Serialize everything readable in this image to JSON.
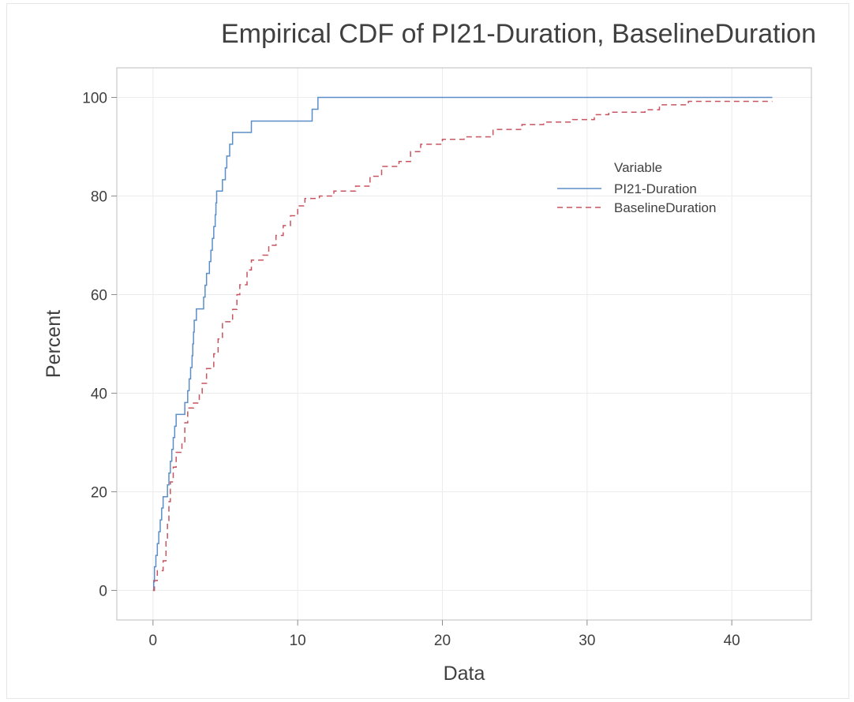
{
  "chart_data": {
    "type": "line",
    "title": "Empirical CDF of PI21-Duration, BaselineDuration",
    "xlabel": "Data",
    "ylabel": "Percent",
    "xlim": [
      -2.5,
      45.5
    ],
    "ylim": [
      -6,
      106
    ],
    "xticks": [
      0,
      10,
      20,
      30,
      40
    ],
    "yticks": [
      0,
      20,
      40,
      60,
      80,
      100
    ],
    "xtick_labels": [
      "0",
      "10",
      "20",
      "30",
      "40"
    ],
    "ytick_labels": [
      "0",
      "20",
      "40",
      "60",
      "80",
      "100"
    ],
    "grid": true,
    "legend": {
      "title": "Variable",
      "placement": "top-right",
      "entries": [
        "PI21-Duration",
        "BaselineDuration"
      ]
    },
    "series": [
      {
        "name": "PI21-Duration",
        "color": "#5b8ec8",
        "dash": "solid",
        "step": true,
        "points": [
          [
            0,
            0
          ],
          [
            0.05,
            2
          ],
          [
            0.1,
            4.8
          ],
          [
            0.2,
            7.1
          ],
          [
            0.3,
            9.5
          ],
          [
            0.4,
            11.9
          ],
          [
            0.5,
            14.3
          ],
          [
            0.6,
            16.7
          ],
          [
            0.7,
            19
          ],
          [
            1.0,
            21.4
          ],
          [
            1.1,
            23.8
          ],
          [
            1.2,
            26.2
          ],
          [
            1.3,
            28.6
          ],
          [
            1.4,
            31
          ],
          [
            1.5,
            33.3
          ],
          [
            1.6,
            35.7
          ],
          [
            2.2,
            38.1
          ],
          [
            2.4,
            40.5
          ],
          [
            2.5,
            42.9
          ],
          [
            2.6,
            45.2
          ],
          [
            2.7,
            47.6
          ],
          [
            2.75,
            50
          ],
          [
            2.8,
            52.4
          ],
          [
            2.85,
            54.8
          ],
          [
            3.0,
            57.1
          ],
          [
            3.5,
            59.5
          ],
          [
            3.6,
            61.9
          ],
          [
            3.7,
            64.3
          ],
          [
            3.9,
            66.7
          ],
          [
            4.0,
            69
          ],
          [
            4.1,
            71.4
          ],
          [
            4.2,
            73.8
          ],
          [
            4.3,
            76.2
          ],
          [
            4.35,
            78.6
          ],
          [
            4.4,
            81
          ],
          [
            4.8,
            83.3
          ],
          [
            5.0,
            85.7
          ],
          [
            5.1,
            88.1
          ],
          [
            5.3,
            90.5
          ],
          [
            5.5,
            92.9
          ],
          [
            6.8,
            95.2
          ],
          [
            11.0,
            97.6
          ],
          [
            11.4,
            100
          ],
          [
            42.8,
            100
          ]
        ]
      },
      {
        "name": "BaselineDuration",
        "color": "#c85460",
        "dash": "dashed",
        "step": true,
        "points": [
          [
            0,
            0
          ],
          [
            0.1,
            2
          ],
          [
            0.3,
            4
          ],
          [
            0.7,
            6
          ],
          [
            0.9,
            10
          ],
          [
            1.0,
            14
          ],
          [
            1.1,
            18
          ],
          [
            1.2,
            22
          ],
          [
            1.4,
            25
          ],
          [
            1.6,
            28
          ],
          [
            2.0,
            30
          ],
          [
            2.2,
            34
          ],
          [
            2.4,
            37
          ],
          [
            2.8,
            38
          ],
          [
            3.2,
            40
          ],
          [
            3.4,
            42
          ],
          [
            3.7,
            45
          ],
          [
            4.2,
            48
          ],
          [
            4.5,
            51
          ],
          [
            4.8,
            54.5
          ],
          [
            5.5,
            57
          ],
          [
            5.8,
            60
          ],
          [
            6.0,
            62
          ],
          [
            6.5,
            65
          ],
          [
            6.8,
            67
          ],
          [
            7.6,
            68
          ],
          [
            8.0,
            70
          ],
          [
            8.5,
            72
          ],
          [
            9.0,
            74
          ],
          [
            9.5,
            76
          ],
          [
            10.0,
            78
          ],
          [
            10.5,
            79.5
          ],
          [
            11.5,
            80
          ],
          [
            12.5,
            81
          ],
          [
            14.0,
            82
          ],
          [
            15.0,
            84
          ],
          [
            15.8,
            86
          ],
          [
            17.0,
            87
          ],
          [
            17.8,
            89
          ],
          [
            18.5,
            90.5
          ],
          [
            20.0,
            91.5
          ],
          [
            21.5,
            92
          ],
          [
            23.5,
            93.5
          ],
          [
            25.5,
            94.5
          ],
          [
            27.0,
            95
          ],
          [
            29.0,
            95.5
          ],
          [
            30.5,
            96.5
          ],
          [
            31.5,
            97
          ],
          [
            34.0,
            97.5
          ],
          [
            35.0,
            98.5
          ],
          [
            37.0,
            99.2
          ],
          [
            42.8,
            99.2
          ]
        ]
      }
    ]
  }
}
